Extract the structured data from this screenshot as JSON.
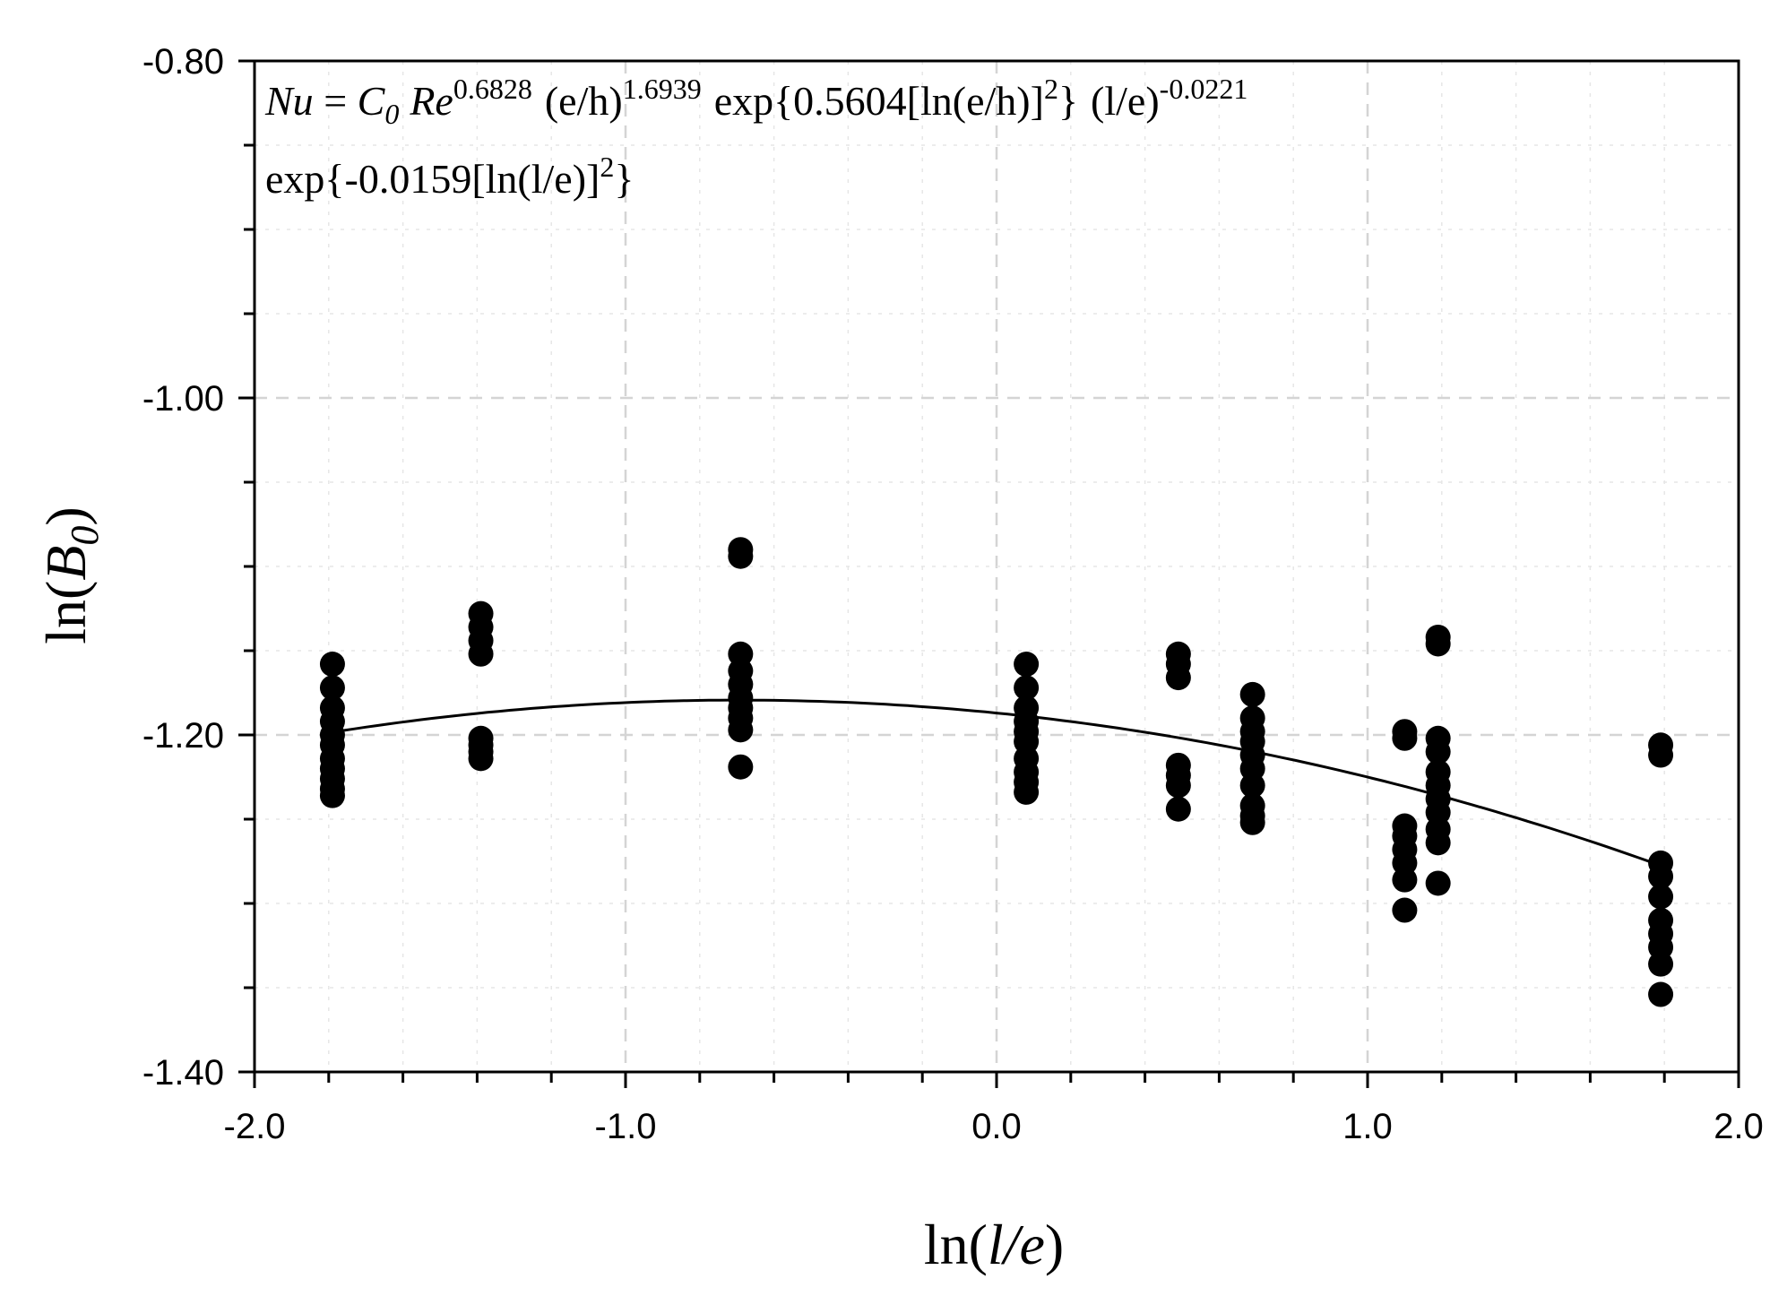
{
  "chart_data": {
    "type": "scatter",
    "title": "",
    "xlabel": {
      "prefix": "ln(",
      "var": "l/e",
      "suffix": ")"
    },
    "ylabel": {
      "prefix": "ln(",
      "var": "B",
      "sub": "0",
      "suffix": ")"
    },
    "xlim": [
      -2.0,
      2.0
    ],
    "ylim": [
      -1.4,
      -0.8
    ],
    "x_ticks": [
      "-2.0",
      "-1.0",
      "0.0",
      "1.0",
      "2.0"
    ],
    "y_ticks": [
      "-0.80",
      "-1.00",
      "-1.20",
      "-1.40"
    ],
    "equation": {
      "line1": {
        "nu": "Nu",
        "eq": " = ",
        "c": "C",
        "c_sub": "0",
        "re": "Re",
        "re_exp": "0.6828",
        "eh1": "(e/h)",
        "eh1_exp": "1.6939",
        "exp1": "exp{0.5604[ln(e/h)]",
        "exp1_sq": "2",
        "exp1_close": "}",
        "le": "(l/e)",
        "le_exp": "-0.0221"
      },
      "line2": {
        "exp2": "exp{-0.0159[ln(l/e)]",
        "exp2_sq": "2",
        "exp2_close": "}"
      }
    },
    "fit_curve": {
      "a": -1.187,
      "b": -0.0221,
      "c": -0.0159,
      "x_range": [
        -1.79,
        1.79
      ]
    },
    "series": [
      {
        "name": "measured",
        "points": [
          [
            -1.79,
            -1.158
          ],
          [
            -1.79,
            -1.172
          ],
          [
            -1.79,
            -1.184
          ],
          [
            -1.79,
            -1.192
          ],
          [
            -1.79,
            -1.2
          ],
          [
            -1.79,
            -1.206
          ],
          [
            -1.79,
            -1.214
          ],
          [
            -1.79,
            -1.22
          ],
          [
            -1.79,
            -1.226
          ],
          [
            -1.79,
            -1.232
          ],
          [
            -1.79,
            -1.236
          ],
          [
            -1.39,
            -1.128
          ],
          [
            -1.39,
            -1.136
          ],
          [
            -1.39,
            -1.144
          ],
          [
            -1.39,
            -1.152
          ],
          [
            -1.39,
            -1.202
          ],
          [
            -1.39,
            -1.206
          ],
          [
            -1.39,
            -1.21
          ],
          [
            -1.39,
            -1.214
          ],
          [
            -0.69,
            -1.09
          ],
          [
            -0.69,
            -1.094
          ],
          [
            -0.69,
            -1.152
          ],
          [
            -0.69,
            -1.162
          ],
          [
            -0.69,
            -1.17
          ],
          [
            -0.69,
            -1.178
          ],
          [
            -0.69,
            -1.184
          ],
          [
            -0.69,
            -1.19
          ],
          [
            -0.69,
            -1.197
          ],
          [
            -0.69,
            -1.219
          ],
          [
            0.08,
            -1.158
          ],
          [
            0.08,
            -1.172
          ],
          [
            0.08,
            -1.184
          ],
          [
            0.08,
            -1.192
          ],
          [
            0.08,
            -1.198
          ],
          [
            0.08,
            -1.204
          ],
          [
            0.08,
            -1.214
          ],
          [
            0.08,
            -1.222
          ],
          [
            0.08,
            -1.228
          ],
          [
            0.08,
            -1.234
          ],
          [
            0.49,
            -1.152
          ],
          [
            0.49,
            -1.158
          ],
          [
            0.49,
            -1.166
          ],
          [
            0.49,
            -1.218
          ],
          [
            0.49,
            -1.224
          ],
          [
            0.49,
            -1.23
          ],
          [
            0.49,
            -1.244
          ],
          [
            0.69,
            -1.176
          ],
          [
            0.69,
            -1.19
          ],
          [
            0.69,
            -1.198
          ],
          [
            0.69,
            -1.204
          ],
          [
            0.69,
            -1.212
          ],
          [
            0.69,
            -1.22
          ],
          [
            0.69,
            -1.23
          ],
          [
            0.69,
            -1.242
          ],
          [
            0.69,
            -1.248
          ],
          [
            0.69,
            -1.252
          ],
          [
            1.1,
            -1.198
          ],
          [
            1.1,
            -1.202
          ],
          [
            1.1,
            -1.254
          ],
          [
            1.1,
            -1.26
          ],
          [
            1.1,
            -1.268
          ],
          [
            1.1,
            -1.276
          ],
          [
            1.1,
            -1.286
          ],
          [
            1.1,
            -1.304
          ],
          [
            1.19,
            -1.142
          ],
          [
            1.19,
            -1.146
          ],
          [
            1.19,
            -1.202
          ],
          [
            1.19,
            -1.21
          ],
          [
            1.19,
            -1.222
          ],
          [
            1.19,
            -1.23
          ],
          [
            1.19,
            -1.238
          ],
          [
            1.19,
            -1.246
          ],
          [
            1.19,
            -1.256
          ],
          [
            1.19,
            -1.264
          ],
          [
            1.19,
            -1.288
          ],
          [
            1.79,
            -1.206
          ],
          [
            1.79,
            -1.212
          ],
          [
            1.79,
            -1.276
          ],
          [
            1.79,
            -1.284
          ],
          [
            1.79,
            -1.296
          ],
          [
            1.79,
            -1.31
          ],
          [
            1.79,
            -1.318
          ],
          [
            1.79,
            -1.326
          ],
          [
            1.79,
            -1.336
          ],
          [
            1.79,
            -1.354
          ]
        ]
      }
    ]
  }
}
